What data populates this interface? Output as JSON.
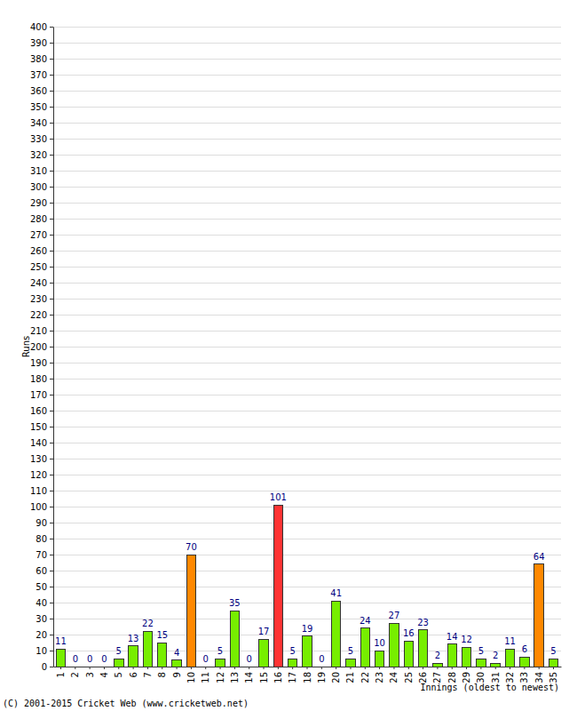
{
  "chart_data": {
    "type": "bar",
    "categories": [
      "1",
      "2",
      "3",
      "4",
      "5",
      "6",
      "7",
      "8",
      "9",
      "10",
      "11",
      "12",
      "13",
      "14",
      "15",
      "16",
      "17",
      "18",
      "19",
      "20",
      "21",
      "22",
      "23",
      "24",
      "25",
      "26",
      "27",
      "28",
      "29",
      "30",
      "31",
      "32",
      "33",
      "34",
      "35"
    ],
    "values": [
      11,
      0,
      0,
      0,
      5,
      13,
      22,
      15,
      4,
      70,
      0,
      5,
      35,
      0,
      17,
      101,
      5,
      19,
      0,
      41,
      5,
      24,
      10,
      27,
      16,
      23,
      2,
      14,
      12,
      5,
      2,
      11,
      6,
      64,
      5
    ],
    "colors": [
      "#77ee00",
      "#77ee00",
      "#77ee00",
      "#77ee00",
      "#77ee00",
      "#77ee00",
      "#77ee00",
      "#77ee00",
      "#77ee00",
      "#ff8800",
      "#77ee00",
      "#77ee00",
      "#77ee00",
      "#77ee00",
      "#77ee00",
      "#ff3333",
      "#77ee00",
      "#77ee00",
      "#77ee00",
      "#77ee00",
      "#77ee00",
      "#77ee00",
      "#77ee00",
      "#77ee00",
      "#77ee00",
      "#77ee00",
      "#77ee00",
      "#77ee00",
      "#77ee00",
      "#77ee00",
      "#77ee00",
      "#77ee00",
      "#77ee00",
      "#ff8800",
      "#77ee00"
    ],
    "xlabel": "Innings (oldest to newest)",
    "ylabel": "Runs",
    "annotations": [
      "(C) 2001-2015 Cricket Web (www.cricketweb.net)"
    ],
    "ylim": [
      0,
      400
    ],
    "yticks": [
      0,
      10,
      20,
      30,
      40,
      50,
      60,
      70,
      80,
      90,
      100,
      110,
      120,
      130,
      140,
      150,
      160,
      170,
      180,
      190,
      200,
      210,
      220,
      230,
      240,
      250,
      260,
      270,
      280,
      290,
      300,
      310,
      320,
      330,
      340,
      350,
      360,
      370,
      380,
      390,
      400
    ],
    "grid": true,
    "data_labels": true
  }
}
